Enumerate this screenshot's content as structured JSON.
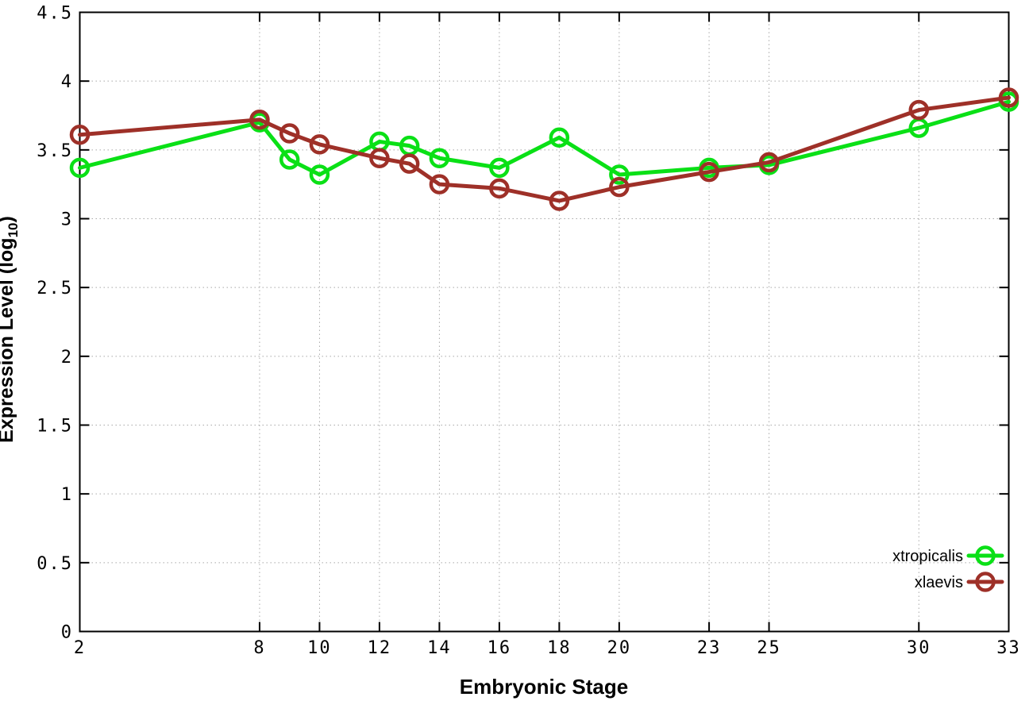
{
  "figure": {
    "background": "#ffffff",
    "xlabel": "Embryonic Stage",
    "ylabel_main": "Expression Level (log",
    "ylabel_sub": "10",
    "ylabel_close": ")"
  },
  "chart_data": {
    "type": "line",
    "title": "",
    "xlabel": "Embryonic Stage",
    "ylabel": "Expression Level (log10)",
    "x": [
      2,
      8,
      9,
      10,
      12,
      13,
      14,
      16,
      18,
      20,
      23,
      25,
      30,
      33
    ],
    "xticks": [
      2,
      8,
      10,
      12,
      14,
      16,
      18,
      20,
      23,
      25,
      30,
      33
    ],
    "yticks": [
      0,
      0.5,
      1,
      1.5,
      2,
      2.5,
      3,
      3.5,
      4,
      4.5
    ],
    "xlim": [
      2,
      33
    ],
    "ylim": [
      0,
      4.5
    ],
    "grid": true,
    "grid_color": "#a8a8a8",
    "border_color": "#000000",
    "legend_position": "bottom-right-inside",
    "marker": "open-circle",
    "series": [
      {
        "name": "xtropicalis",
        "color": "#0ae016",
        "values": [
          3.37,
          3.7,
          3.43,
          3.32,
          3.56,
          3.53,
          3.44,
          3.37,
          3.59,
          3.32,
          3.37,
          3.39,
          3.66,
          3.85
        ]
      },
      {
        "name": "xlaevis",
        "color": "#9e3028",
        "values": [
          3.61,
          3.72,
          3.62,
          3.54,
          3.44,
          3.4,
          3.25,
          3.22,
          3.13,
          3.23,
          3.34,
          3.41,
          3.79,
          3.88
        ]
      }
    ]
  }
}
